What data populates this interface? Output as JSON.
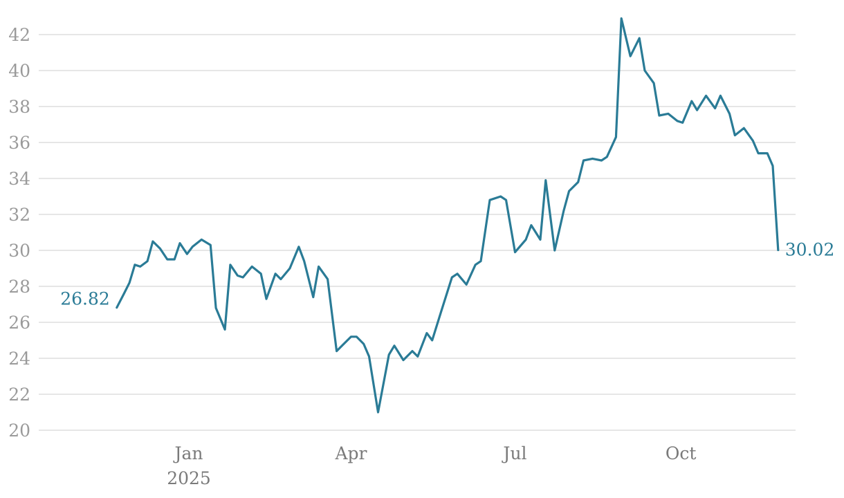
{
  "chart_data": {
    "type": "line",
    "title": "",
    "xlabel": "",
    "ylabel": "",
    "ylim": [
      20,
      43
    ],
    "xlim": [
      "2024-11-14",
      "2025-11-26"
    ],
    "yticks": [
      20,
      22,
      24,
      26,
      28,
      30,
      32,
      34,
      36,
      38,
      40,
      42
    ],
    "xticks": [
      {
        "date": "2025-01-01",
        "label": "Jan",
        "sublabel": "2025"
      },
      {
        "date": "2025-04-01",
        "label": "Apr",
        "sublabel": ""
      },
      {
        "date": "2025-07-01",
        "label": "Jul",
        "sublabel": ""
      },
      {
        "date": "2025-10-01",
        "label": "Oct",
        "sublabel": ""
      }
    ],
    "grid": true,
    "color": "#2a7b96",
    "start_label": "26.82",
    "end_label": "30.02",
    "series": [
      {
        "x": [
          "2024-11-22",
          "2024-11-26",
          "2024-11-29",
          "2024-12-02",
          "2024-12-05",
          "2024-12-09",
          "2024-12-12",
          "2024-12-16",
          "2024-12-20",
          "2024-12-24",
          "2024-12-27",
          "2024-12-31",
          "2025-01-03",
          "2025-01-08",
          "2025-01-13",
          "2025-01-16",
          "2025-01-21",
          "2025-01-24",
          "2025-01-28",
          "2025-01-31",
          "2025-02-05",
          "2025-02-10",
          "2025-02-13",
          "2025-02-18",
          "2025-02-21",
          "2025-02-26",
          "2025-03-03",
          "2025-03-06",
          "2025-03-11",
          "2025-03-14",
          "2025-03-19",
          "2025-03-24",
          "2025-03-27",
          "2025-04-01",
          "2025-04-04",
          "2025-04-08",
          "2025-04-11",
          "2025-04-16",
          "2025-04-22",
          "2025-04-25",
          "2025-04-30",
          "2025-05-05",
          "2025-05-08",
          "2025-05-13",
          "2025-05-16",
          "2025-05-21",
          "2025-05-27",
          "2025-05-30",
          "2025-06-04",
          "2025-06-09",
          "2025-06-12",
          "2025-06-17",
          "2025-06-23",
          "2025-06-26",
          "2025-07-01",
          "2025-07-07",
          "2025-07-10",
          "2025-07-15",
          "2025-07-18",
          "2025-07-23",
          "2025-07-28",
          "2025-07-31",
          "2025-08-05",
          "2025-08-08",
          "2025-08-13",
          "2025-08-18",
          "2025-08-21",
          "2025-08-26",
          "2025-08-29",
          "2025-09-03",
          "2025-09-08",
          "2025-09-11",
          "2025-09-16",
          "2025-09-19",
          "2025-09-24",
          "2025-09-29",
          "2025-10-02",
          "2025-10-07",
          "2025-10-10",
          "2025-10-15",
          "2025-10-20",
          "2025-10-23",
          "2025-10-28",
          "2025-10-31",
          "2025-11-05",
          "2025-11-10",
          "2025-11-13",
          "2025-11-18",
          "2025-11-21",
          "2025-11-24"
        ],
        "y": [
          26.82,
          27.6,
          28.2,
          29.2,
          29.1,
          29.4,
          30.5,
          30.1,
          29.5,
          29.5,
          30.4,
          29.8,
          30.2,
          30.6,
          30.3,
          26.8,
          25.6,
          29.2,
          28.6,
          28.5,
          29.1,
          28.7,
          27.3,
          28.7,
          28.4,
          29.0,
          30.2,
          29.4,
          27.4,
          29.1,
          28.4,
          24.4,
          24.7,
          25.2,
          25.2,
          24.8,
          24.1,
          21.0,
          24.2,
          24.7,
          23.9,
          24.4,
          24.1,
          25.4,
          25.0,
          26.6,
          28.5,
          28.7,
          28.1,
          29.2,
          29.4,
          32.8,
          33.0,
          32.8,
          29.9,
          30.6,
          31.4,
          30.6,
          33.9,
          30.0,
          32.2,
          33.3,
          33.8,
          35.0,
          35.1,
          35.0,
          35.2,
          36.3,
          42.9,
          40.8,
          41.8,
          40.0,
          39.3,
          37.5,
          37.6,
          37.2,
          37.1,
          38.3,
          37.8,
          38.6,
          37.9,
          38.6,
          37.6,
          36.4,
          36.8,
          36.1,
          35.4,
          35.4,
          34.7,
          30.02
        ]
      }
    ]
  }
}
